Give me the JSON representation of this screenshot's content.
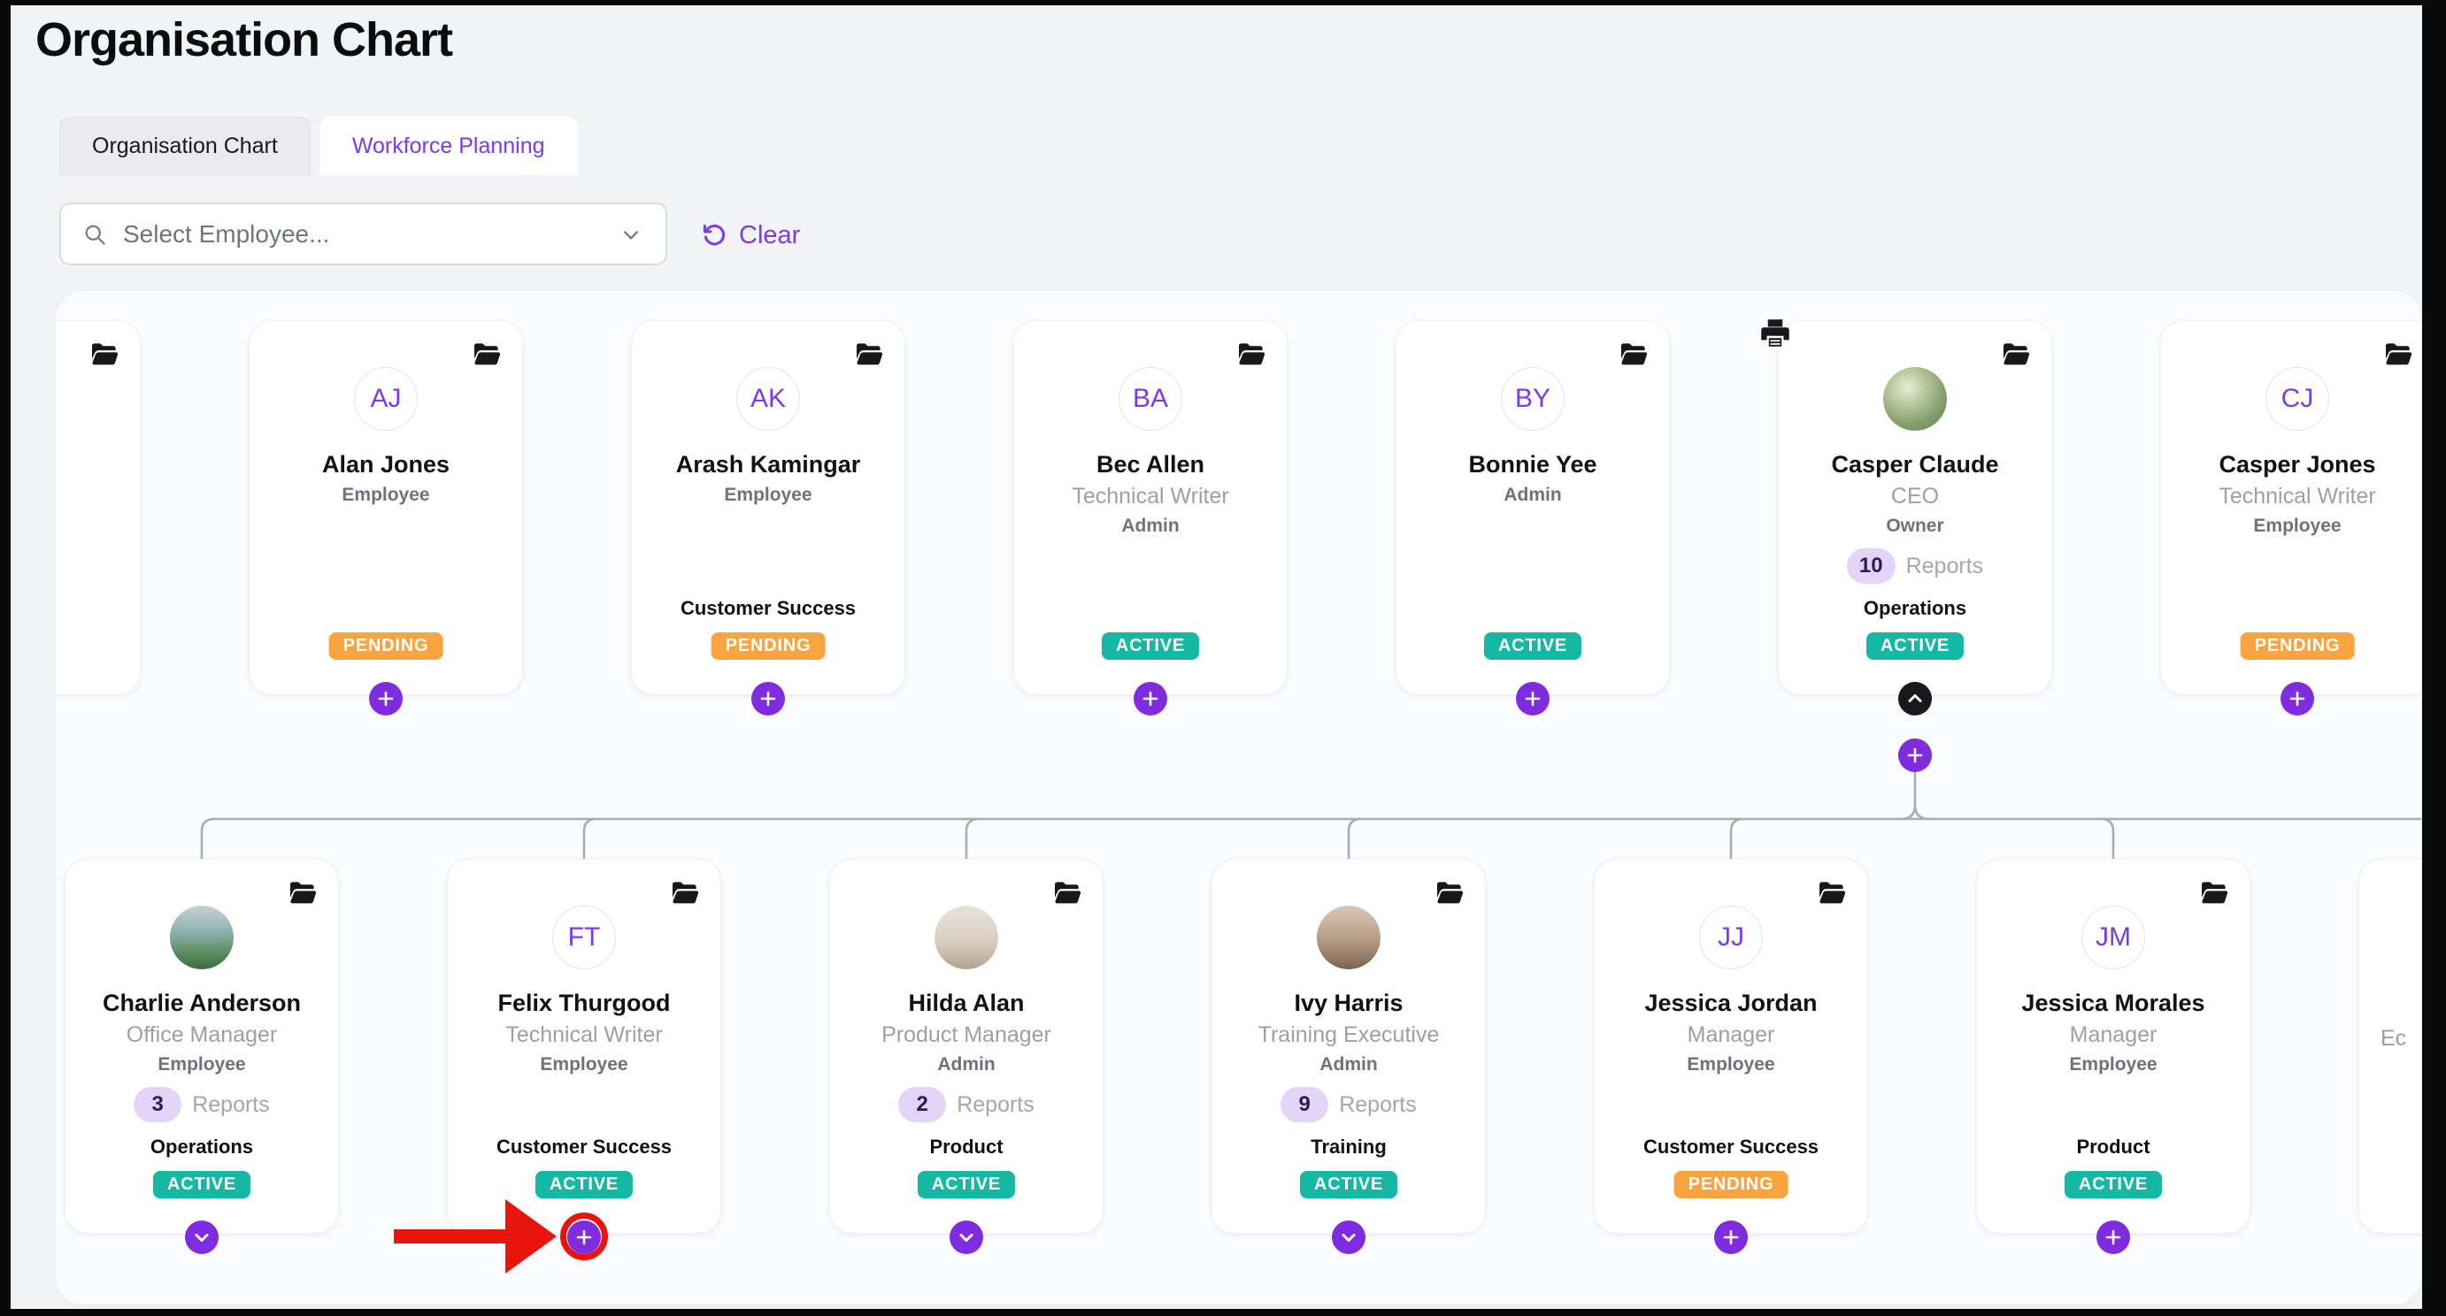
{
  "header": {
    "title": "Organisation Chart"
  },
  "tabs": [
    {
      "label": "Organisation Chart",
      "active": false
    },
    {
      "label": "Workforce Planning",
      "active": true
    }
  ],
  "toolbar": {
    "select_placeholder": "Select Employee...",
    "clear_label": "Clear"
  },
  "colors": {
    "accent": "#7c3aed",
    "button_purple": "#7f2be0",
    "collapse_black": "#18181d",
    "active_badge": "#14b8a3",
    "pending_badge": "#f7a541",
    "reports_pill_bg": "#e4d4f8",
    "reports_pill_text": "#32175e",
    "connector": "#a7abb2",
    "annotation_red": "#e8150c"
  },
  "org_chart": {
    "reports_label": "Reports",
    "rows": [
      {
        "cards": [
          {
            "partial": "left"
          },
          {
            "name": "Alan Jones",
            "initials": "AJ",
            "role": null,
            "access": "Employee",
            "reports": null,
            "department": null,
            "status": "PENDING",
            "action": "add"
          },
          {
            "name": "Arash Kamingar",
            "initials": "AK",
            "role": null,
            "access": "Employee",
            "reports": null,
            "department": "Customer Success",
            "status": "PENDING",
            "action": "add"
          },
          {
            "name": "Bec Allen",
            "initials": "BA",
            "role": "Technical Writer",
            "access": "Admin",
            "reports": null,
            "department": null,
            "status": "ACTIVE",
            "action": "add"
          },
          {
            "name": "Bonnie Yee",
            "initials": "BY",
            "role": null,
            "access": "Admin",
            "reports": null,
            "department": null,
            "status": "ACTIVE",
            "action": "add"
          },
          {
            "name": "Casper Claude",
            "avatar_photo": "portrait of a man against green bokeh",
            "photo_css": "radial-gradient(circle at 38% 32%, #e8eed6 0%, #b9c8a0 30%, #87a06f 62%, #5d7850 100%)",
            "role": "CEO",
            "access": "Owner",
            "reports": 10,
            "department": "Operations",
            "status": "ACTIVE",
            "action": "collapse",
            "extra_add_button": true,
            "has_printer": true
          },
          {
            "name": "Casper Jones",
            "initials": "CJ",
            "role": "Technical Writer",
            "access": "Employee",
            "reports": null,
            "department": null,
            "status": "PENDING",
            "action": "add"
          }
        ]
      },
      {
        "cards": [
          {
            "name": "Charlie Anderson",
            "avatar_photo": "person overlooking green valley landscape",
            "photo_css": "linear-gradient(180deg,#c5d2d4 0%,#8fb2b4 40%,#5d8f62 72%,#3a6b44 100%)",
            "role": "Office Manager",
            "access": "Employee",
            "reports": 3,
            "department": "Operations",
            "status": "ACTIVE",
            "action": "expand"
          },
          {
            "name": "Felix Thurgood",
            "initials": "FT",
            "role": "Technical Writer",
            "access": "Employee",
            "reports": null,
            "department": "Customer Success",
            "status": "ACTIVE",
            "action": "add",
            "annotated": true
          },
          {
            "name": "Hilda Alan",
            "avatar_photo": "traveller standing with suitcase",
            "photo_css": "linear-gradient(180deg,#e9e3da 0%,#d9cfc2 55%,#b4a48f 100%)",
            "role": "Product Manager",
            "access": "Admin",
            "reports": 2,
            "department": "Product",
            "status": "ACTIVE",
            "action": "expand"
          },
          {
            "name": "Ivy Harris",
            "avatar_photo": "woman walking in a city street",
            "photo_css": "linear-gradient(180deg,#d9c9b6 0%,#b99f88 50%,#7e6450 100%)",
            "role": "Training Executive",
            "access": "Admin",
            "reports": 9,
            "department": "Training",
            "status": "ACTIVE",
            "action": "expand"
          },
          {
            "name": "Jessica Jordan",
            "initials": "JJ",
            "role": "Manager",
            "access": "Employee",
            "reports": null,
            "department": "Customer Success",
            "status": "PENDING",
            "action": "add"
          },
          {
            "name": "Jessica Morales",
            "initials": "JM",
            "role": "Manager",
            "access": "Employee",
            "reports": null,
            "department": "Product",
            "status": "ACTIVE",
            "action": "add"
          },
          {
            "partial": "right",
            "visible_text": "Ec"
          }
        ]
      }
    ]
  },
  "annotation": {
    "type": "red arrow with ring",
    "target": "Felix Thurgood add button"
  }
}
